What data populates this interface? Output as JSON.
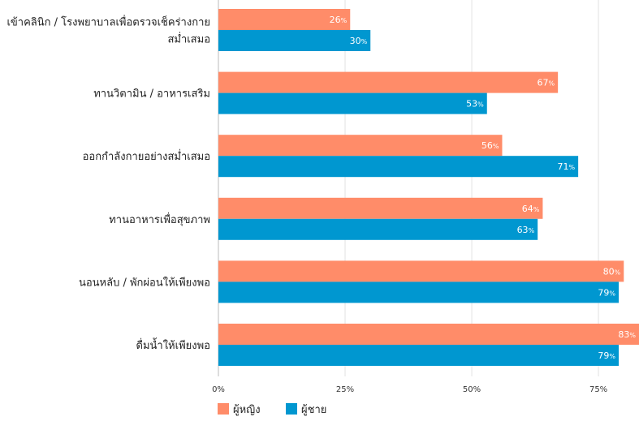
{
  "chart_data": {
    "type": "bar",
    "orientation": "horizontal",
    "categories": [
      [
        "เข้าคลินิก / โรงพยาบาลเพื่อตรวจเช็คร่างกาย",
        "สม่ำเสมอ"
      ],
      [
        "ทานวิตามิน / อาหารเสริม"
      ],
      [
        "ออกกำลังกายอย่างสม่ำเสมอ"
      ],
      [
        "ทานอาหารเพื่อสุขภาพ"
      ],
      [
        "นอนหลับ / พักผ่อนให้เพียงพอ"
      ],
      [
        "ดื่มน้ำให้เพียงพอ"
      ]
    ],
    "series": [
      {
        "name": "ผู้หญิง",
        "color": "#FF8C69",
        "values": [
          26,
          67,
          56,
          64,
          80,
          83
        ]
      },
      {
        "name": "ผู้ชาย",
        "color": "#0097D0",
        "values": [
          30,
          53,
          71,
          63,
          79,
          79
        ]
      }
    ],
    "xlim": [
      0,
      83
    ],
    "xticks": [
      0,
      25,
      50,
      75
    ],
    "tick_suffix": "%",
    "value_suffix": "%",
    "grid": true,
    "legend_position": "bottom-left"
  }
}
